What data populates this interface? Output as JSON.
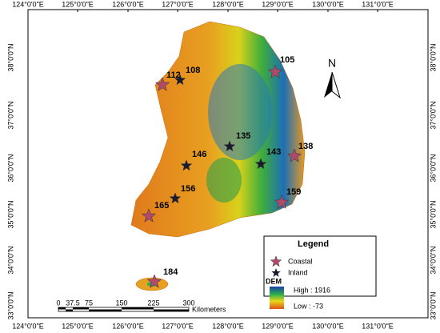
{
  "graticule": {
    "longitudes": [
      "124°0'0\"E",
      "125°0'0\"E",
      "126°0'0\"E",
      "127°0'0\"E",
      "128°0'0\"E",
      "129°0'0\"E",
      "130°0'0\"E",
      "131°0'0\"E"
    ],
    "latitudes": [
      "38°0'0\"N",
      "37°0'0\"N",
      "36°0'0\"N",
      "35°0'0\"N",
      "34°0'0\"N",
      "33°0'0\"N"
    ]
  },
  "coastal_stations": [
    "105",
    "112",
    "138",
    "159",
    "165",
    "184"
  ],
  "inland_stations": [
    "108",
    "135",
    "146",
    "143",
    "156"
  ],
  "north_arrow": "N",
  "legend": {
    "title": "Legend",
    "coastal": "Coastal",
    "inland": "Inland",
    "dem_title": "DEM",
    "high": "High : 1916",
    "low": "Low : -73"
  },
  "scale_bar": {
    "labels": [
      "0",
      "37.5",
      "75",
      "150",
      "225",
      "300"
    ],
    "unit": "Kilometers"
  }
}
